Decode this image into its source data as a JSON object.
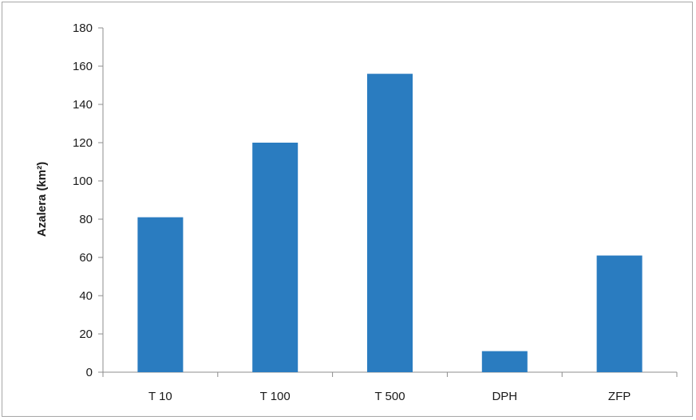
{
  "chart_data": {
    "type": "bar",
    "title": "",
    "xlabel": "",
    "ylabel": "Azalera (km²)",
    "categories": [
      "T 10",
      "T 100",
      "T 500",
      "DPH",
      "ZFP"
    ],
    "values": [
      81,
      120,
      156,
      11,
      61
    ],
    "ylim": [
      0,
      180
    ],
    "yticks": [
      0,
      20,
      40,
      60,
      80,
      100,
      120,
      140,
      160,
      180
    ],
    "grid": false,
    "legend": "none",
    "bar_color": "#2a7cc0",
    "axis_color": "#8c8c8c"
  }
}
